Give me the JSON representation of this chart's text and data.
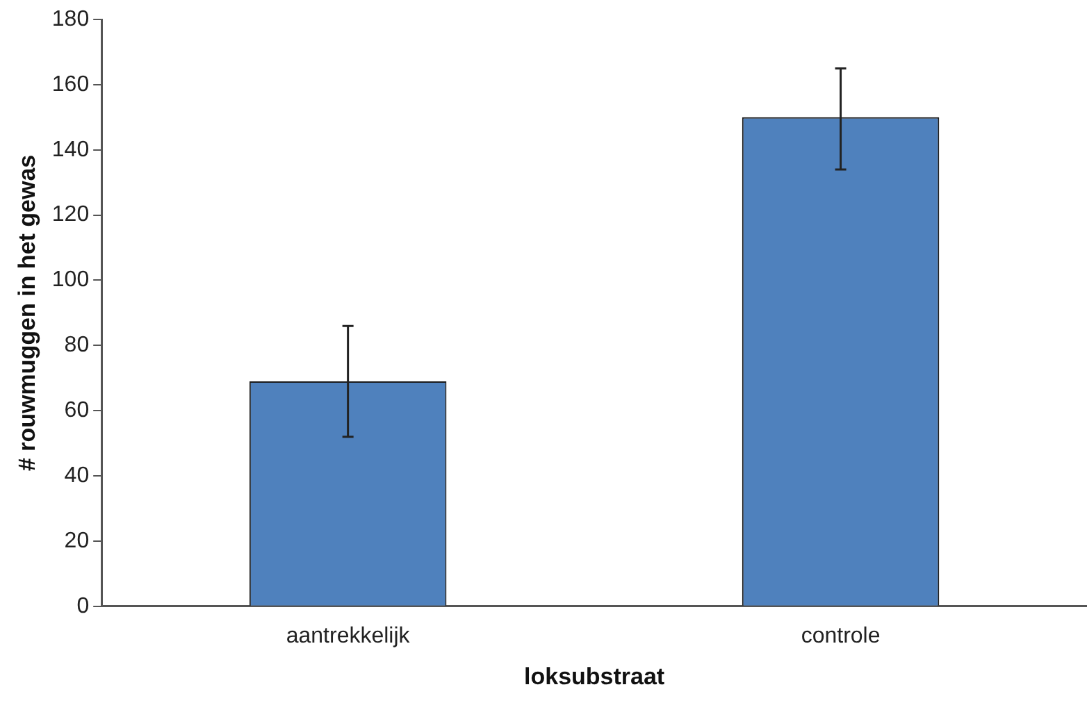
{
  "chart_data": {
    "type": "bar",
    "xlabel": "loksubstraat",
    "ylabel": "# rouwmuggen in het gewas",
    "categories": [
      "aantrekkelijk",
      "controle"
    ],
    "series": [
      {
        "color": "#4f81bd",
        "values": [
          69,
          150
        ],
        "errors": [
          [
            52,
            86
          ],
          [
            134,
            165
          ]
        ]
      }
    ],
    "ylim": [
      0,
      180
    ],
    "yticks": [
      0,
      20,
      40,
      60,
      80,
      100,
      120,
      140,
      160,
      180
    ],
    "grid": false,
    "legend": false
  }
}
